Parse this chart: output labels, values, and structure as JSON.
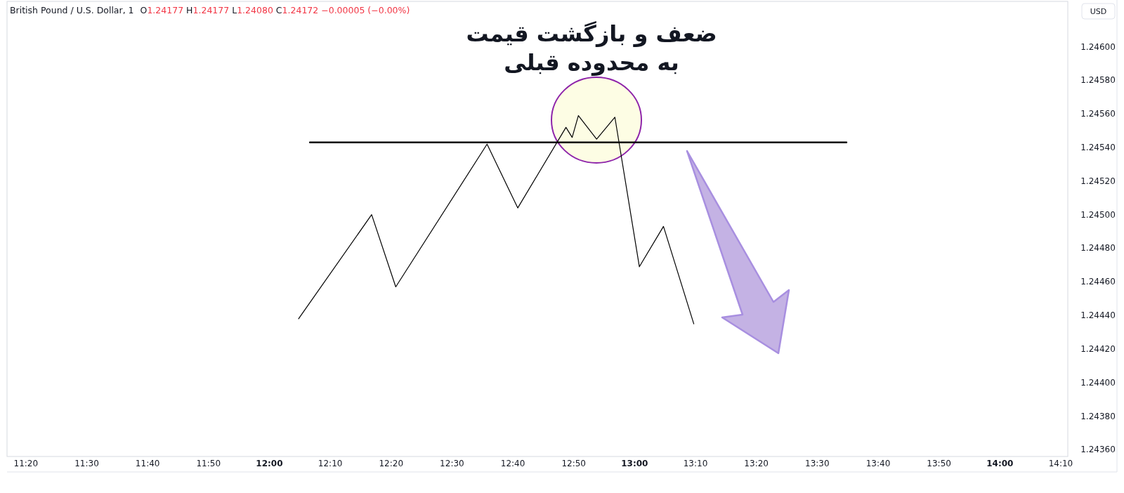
{
  "chart_data": {
    "type": "line",
    "title": "ضعف و بازگشت قیمت\nبه محدوده قبلی",
    "subtitle": "British Pound / U.S. Dollar, 1",
    "ylabel": "USD",
    "annotations": [
      "O1.24177 H1.24177 L1.24080 C1.24172 −0.00005 (−0.00%)"
    ],
    "series": [
      {
        "color": "#000000",
        "x": [
          12.08,
          12.28,
          12.346,
          12.596,
          12.68,
          12.812,
          12.829,
          12.846,
          12.896,
          12.946,
          13.013,
          13.079,
          13.162
        ],
        "values": [
          1.24438,
          1.245,
          1.24457,
          1.24542,
          1.24504,
          1.24552,
          1.24546,
          1.24559,
          1.24545,
          1.24558,
          1.24469,
          1.24493,
          1.24435
        ]
      },
      {
        "color": "#000000",
        "x": [
          12.111,
          13.58
        ],
        "values": [
          1.24543,
          1.24543
        ]
      }
    ],
    "xlim": [
      11.2817,
      14.186
    ],
    "ylim": [
      1.24356,
      1.24627
    ],
    "xticks": [
      {
        "value": 11.3333,
        "label": "11:20"
      },
      {
        "value": 11.5,
        "label": "11:30"
      },
      {
        "value": 11.6667,
        "label": "11:40"
      },
      {
        "value": 11.8333,
        "label": "11:50"
      },
      {
        "value": 12,
        "label": "12:00"
      },
      {
        "value": 12.1667,
        "label": "12:10"
      },
      {
        "value": 12.3333,
        "label": "12:20"
      },
      {
        "value": 12.5,
        "label": "12:30"
      },
      {
        "value": 12.6667,
        "label": "12:40"
      },
      {
        "value": 12.8333,
        "label": "12:50"
      },
      {
        "value": 13,
        "label": "13:00"
      },
      {
        "value": 13.1667,
        "label": "13:10"
      },
      {
        "value": 13.3333,
        "label": "13:20"
      },
      {
        "value": 13.5,
        "label": "13:30"
      },
      {
        "value": 13.6667,
        "label": "13:40"
      },
      {
        "value": 13.8333,
        "label": "13:50"
      },
      {
        "value": 14,
        "label": "14:00"
      },
      {
        "value": 14.1667,
        "label": "14:10"
      }
    ],
    "yticks": [
      {
        "value": 1.246,
        "label": "1.24600"
      },
      {
        "value": 1.2458,
        "label": "1.24580"
      },
      {
        "value": 1.2456,
        "label": "1.24560"
      },
      {
        "value": 1.2454,
        "label": "1.24540"
      },
      {
        "value": 1.2452,
        "label": "1.24520"
      },
      {
        "value": 1.245,
        "label": "1.24500"
      },
      {
        "value": 1.2448,
        "label": "1.24480"
      },
      {
        "value": 1.2446,
        "label": "1.24460"
      },
      {
        "value": 1.2444,
        "label": "1.24440"
      },
      {
        "value": 1.2442,
        "label": "1.24420"
      },
      {
        "value": 1.244,
        "label": "1.24400"
      },
      {
        "value": 1.2438,
        "label": "1.24380"
      },
      {
        "value": 1.2436,
        "label": "1.24360"
      }
    ]
  }
}
